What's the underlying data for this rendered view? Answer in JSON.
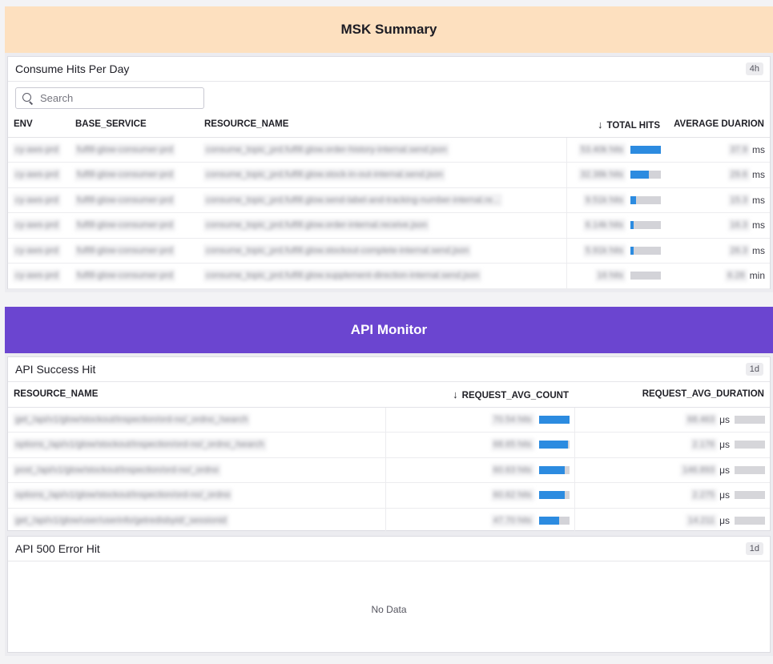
{
  "msk": {
    "title": "MSK Summary",
    "widget": {
      "title": "Consume Hits Per Day",
      "badge": "4h",
      "search_placeholder": "Search",
      "columns": {
        "env": "ENV",
        "base_service": "BASE_SERVICE",
        "resource_name": "RESOURCE_NAME",
        "total_hits": "TOTAL HITS",
        "avg_duration": "AVERAGE DUARION"
      },
      "rows": [
        {
          "env": "cy-aws-prd",
          "service": "fulfill-glow-consumer-prd",
          "resource": "consume_topic_prd.fulfill.glow.order-history-internal.send.json",
          "hits": "53.40k hits",
          "hits_pct": 100,
          "dur": "37.9",
          "unit": "ms"
        },
        {
          "env": "cy-aws-prd",
          "service": "fulfill-glow-consumer-prd",
          "resource": "consume_topic_prd.fulfill.glow.stock-in-out-internal.send.json",
          "hits": "32.38k hits",
          "hits_pct": 61,
          "dur": "29.6",
          "unit": "ms"
        },
        {
          "env": "cy-aws-prd",
          "service": "fulfill-glow-consumer-prd",
          "resource": "consume_topic_prd.fulfill.glow.send-label-and-tracking-number-internal.re...",
          "hits": "9.51k hits",
          "hits_pct": 18,
          "dur": "15.3",
          "unit": "ms"
        },
        {
          "env": "cy-aws-prd",
          "service": "fulfill-glow-consumer-prd",
          "resource": "consume_topic_prd.fulfill.glow.order-internal.receive.json",
          "hits": "6.14k hits",
          "hits_pct": 11,
          "dur": "16.3",
          "unit": "ms"
        },
        {
          "env": "cy-aws-prd",
          "service": "fulfill-glow-consumer-prd",
          "resource": "consume_topic_prd.fulfill.glow.stockout-complete-internal.send.json",
          "hits": "5.91k hits",
          "hits_pct": 11,
          "dur": "26.3",
          "unit": "ms"
        },
        {
          "env": "cy-aws-prd",
          "service": "fulfill-glow-consumer-prd",
          "resource": "consume_topic_prd.fulfill.glow.supplement-direction-internal.send.json",
          "hits": "16 hits",
          "hits_pct": 0,
          "dur": "6.28",
          "unit": "min"
        }
      ]
    }
  },
  "api": {
    "title": "API Monitor",
    "success": {
      "title": "API Success Hit",
      "badge": "1d",
      "columns": {
        "resource_name": "RESOURCE_NAME",
        "req_count": "REQUEST_AVG_COUNT",
        "req_duration": "REQUEST_AVG_DURATION"
      },
      "rows": [
        {
          "resource": "get_/api/v1/glow/stockout/inspection/ord-no/_ordno_/search",
          "count": "70.54 hits",
          "count_pct": 100,
          "dur": "68.463",
          "unit": "μs"
        },
        {
          "resource": "options_/api/v1/glow/stockout/inspection/ord-no/_ordno_/search",
          "count": "68.65 hits",
          "count_pct": 97,
          "dur": "2.176",
          "unit": "μs"
        },
        {
          "resource": "post_/api/v1/glow/stockout/inspection/ord-no/_ordno",
          "count": "60.63 hits",
          "count_pct": 86,
          "dur": "146.893",
          "unit": "μs"
        },
        {
          "resource": "options_/api/v1/glow/stockout/inspection/ord-no/_ordno",
          "count": "60.62 hits",
          "count_pct": 86,
          "dur": "2.275",
          "unit": "μs"
        },
        {
          "resource": "get_/api/v1/glow/user/userinfo/getredisbyid/_sessionid",
          "count": "47.70 hits",
          "count_pct": 68,
          "dur": "14.211",
          "unit": "μs"
        }
      ]
    },
    "error": {
      "title": "API 500 Error Hit",
      "badge": "1d",
      "empty": "No Data"
    }
  },
  "colors": {
    "msk_header": "#fde0bf",
    "api_header": "#6b45d0",
    "bar": "#2c8be0"
  }
}
